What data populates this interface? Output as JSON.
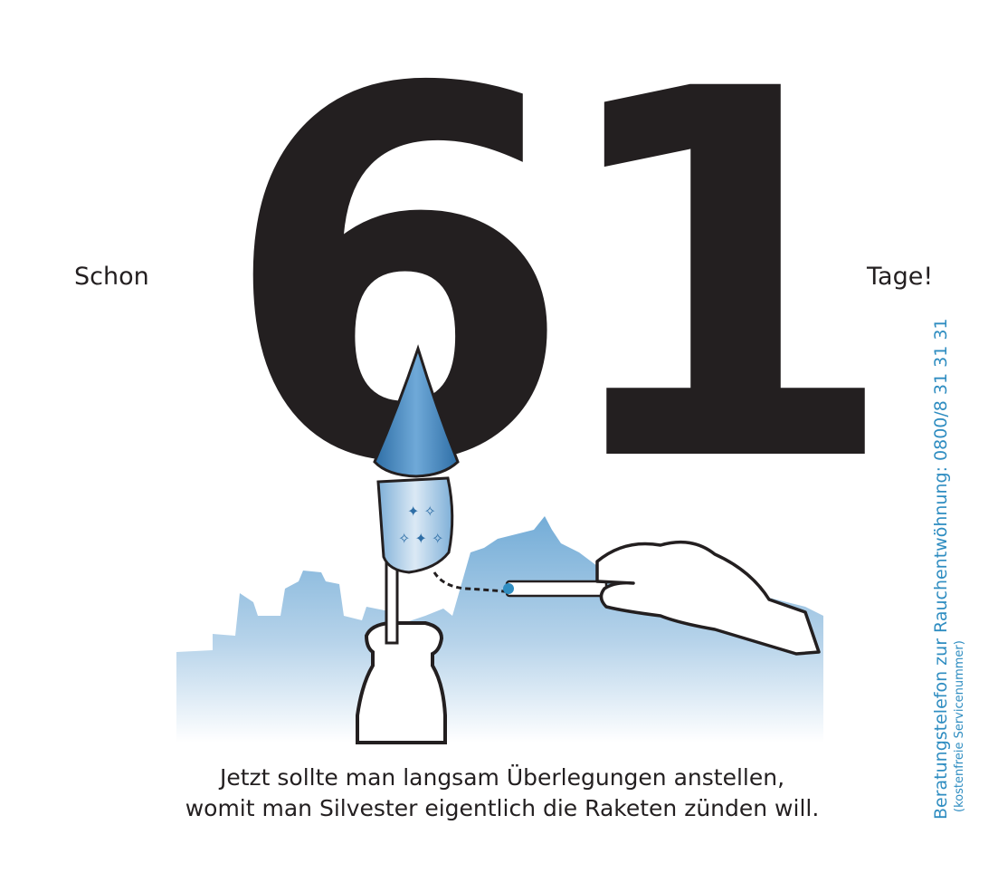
{
  "hero": {
    "number": "61",
    "prefix": "Schon",
    "suffix": "Tage!"
  },
  "caption": {
    "line1": "Jetzt sollte man langsam Überlegungen anstellen,",
    "line2": "womit man Silvester eigentlich die Raketen zünden will."
  },
  "hotline": {
    "label": "Beratungstelefon zur Rauchentwöhnung: 0800/8 31 31 31",
    "note": "(kostenfreie Servicenummer)"
  },
  "illustration": {
    "subject": "rocket-in-bottle-lit-by-cigarette",
    "colors": {
      "accent": "#2f8dc1",
      "ink": "#231f20",
      "sky": "#5b9ed0"
    }
  }
}
